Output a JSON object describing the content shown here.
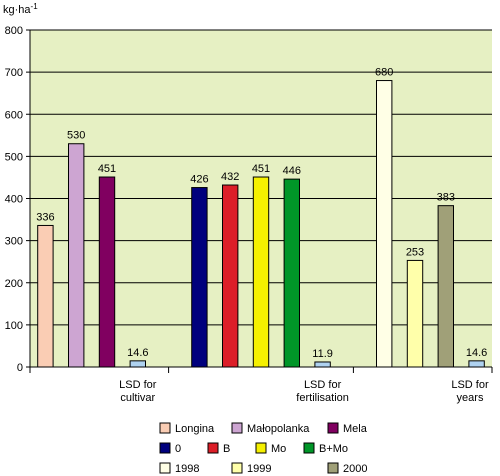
{
  "chart_data": {
    "type": "bar",
    "unit_label": "kg·ha",
    "unit_exponent": "-1",
    "ylim": [
      0,
      800
    ],
    "yticks": [
      0,
      100,
      200,
      300,
      400,
      500,
      600,
      700,
      800
    ],
    "grid": true,
    "groups": [
      {
        "series": [
          {
            "name": "Longina",
            "value": 336,
            "color": "#FACDB4"
          },
          {
            "name": "Małopolanka",
            "value": 530,
            "color": "#CDA5D2"
          },
          {
            "name": "Mela",
            "value": 451,
            "color": "#800060"
          }
        ],
        "lsd": {
          "value": 14.6,
          "label_lines": [
            "LSD for",
            "cultivar"
          ]
        }
      },
      {
        "series": [
          {
            "name": "0",
            "value": 426,
            "color": "#00007D"
          },
          {
            "name": "B",
            "value": 432,
            "color": "#DC1E28"
          },
          {
            "name": "Mo",
            "value": 451,
            "color": "#F5F000"
          },
          {
            "name": "B+Mo",
            "value": 446,
            "color": "#009628"
          }
        ],
        "lsd": {
          "value": 11.9,
          "label_lines": [
            "LSD for",
            "fertilisation"
          ]
        }
      },
      {
        "series": [
          {
            "name": "1998",
            "value": 680,
            "color": "#FFFFE6"
          },
          {
            "name": "1999",
            "value": 253,
            "color": "#FFFFAA"
          },
          {
            "name": "2000",
            "value": 383,
            "color": "#A0A078"
          }
        ],
        "lsd": {
          "value": 14.6,
          "label_lines": [
            "LSD for",
            "years"
          ]
        }
      }
    ],
    "lsd_color": "#AFD2F0",
    "plot_background": "#E6F0C3"
  }
}
